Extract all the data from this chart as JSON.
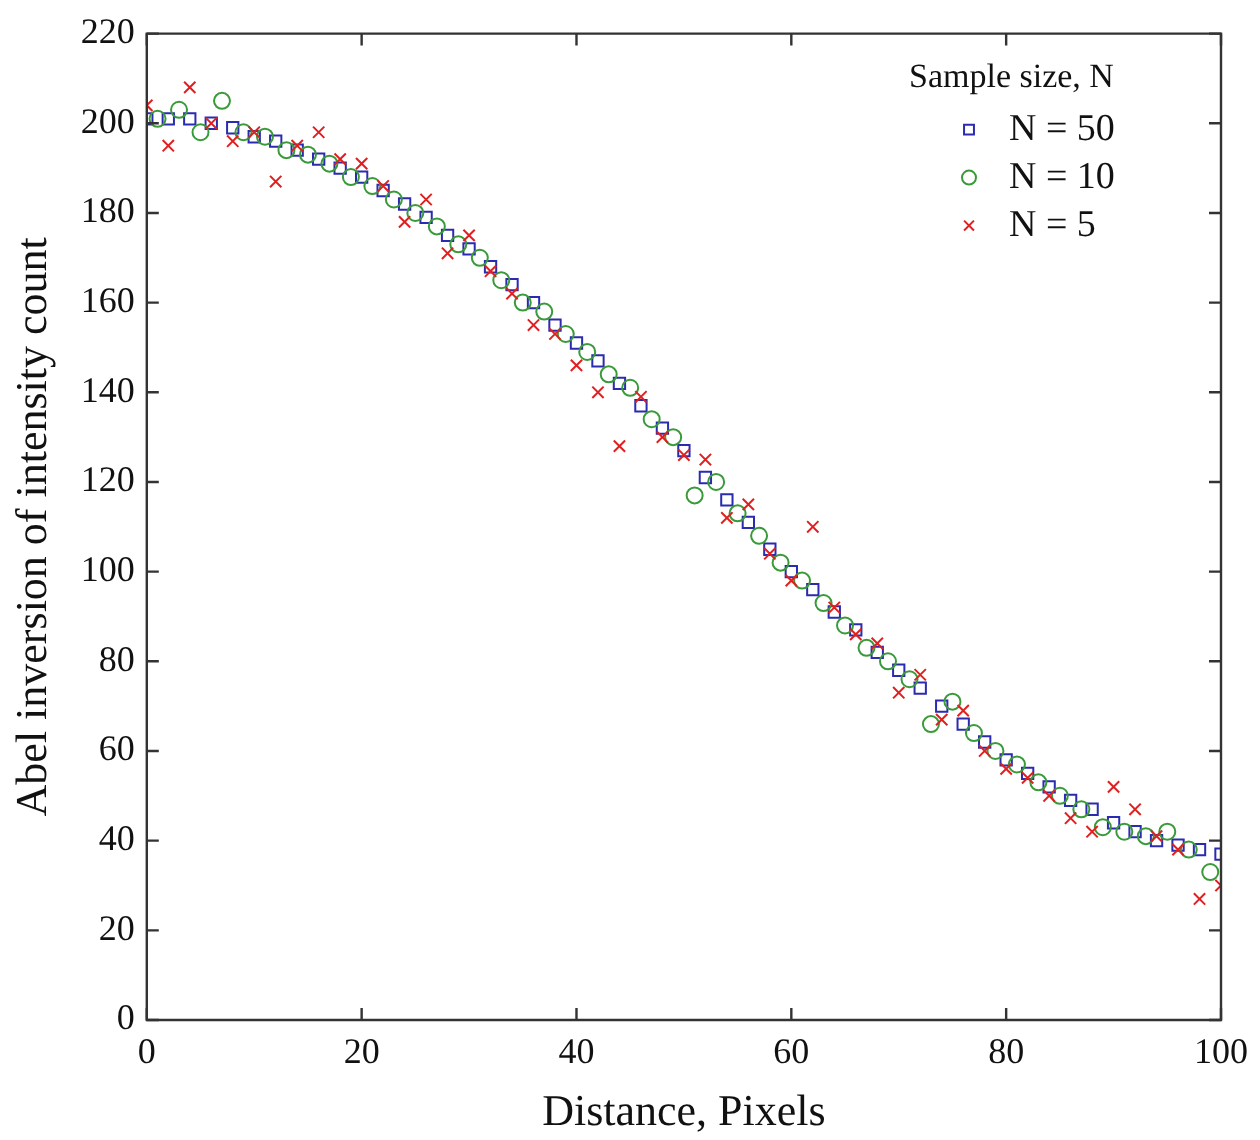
{
  "chart_data": {
    "type": "scatter",
    "xlabel": "Distance, Pixels",
    "ylabel": "Abel inversion of intensity count",
    "legend_title": "Sample size, N",
    "legend": "top right",
    "grid": false,
    "xlim": [
      0,
      100
    ],
    "xticks": [
      0,
      20,
      40,
      60,
      80,
      100
    ],
    "ylim": [
      0,
      220
    ],
    "yticks": [
      0,
      20,
      40,
      60,
      80,
      100,
      120,
      140,
      160,
      180,
      200,
      220
    ],
    "series": [
      {
        "name": "N = 50",
        "color": "#2b2bb0",
        "marker": "square",
        "x": [
          0,
          2,
          4,
          6,
          8,
          10,
          12,
          14,
          16,
          18,
          20,
          22,
          24,
          26,
          28,
          30,
          32,
          34,
          36,
          38,
          40,
          42,
          44,
          46,
          48,
          50,
          52,
          54,
          56,
          58,
          60,
          62,
          64,
          66,
          68,
          70,
          72,
          74,
          76,
          78,
          80,
          82,
          84,
          86,
          88,
          90,
          92,
          94,
          96,
          98,
          100
        ],
        "values": [
          201,
          201,
          201,
          200,
          199,
          197,
          196,
          194,
          192,
          190,
          188,
          185,
          182,
          179,
          175,
          172,
          168,
          164,
          160,
          155,
          151,
          147,
          142,
          137,
          132,
          127,
          121,
          116,
          111,
          105,
          100,
          96,
          91,
          87,
          82,
          78,
          74,
          70,
          66,
          62,
          58,
          55,
          52,
          49,
          47,
          44,
          42,
          40,
          39,
          38,
          37
        ]
      },
      {
        "name": "N = 10",
        "color": "#3a9a3a",
        "marker": "circle",
        "x": [
          1,
          3,
          5,
          7,
          9,
          11,
          13,
          15,
          17,
          19,
          21,
          23,
          25,
          27,
          29,
          31,
          33,
          35,
          37,
          39,
          41,
          43,
          45,
          47,
          49,
          51,
          53,
          55,
          57,
          59,
          61,
          63,
          65,
          67,
          69,
          71,
          73,
          75,
          77,
          79,
          81,
          83,
          85,
          87,
          89,
          91,
          93,
          95,
          97,
          99
        ],
        "values": [
          201,
          203,
          198,
          205,
          198,
          197,
          194,
          193,
          191,
          188,
          186,
          183,
          180,
          177,
          173,
          170,
          165,
          160,
          158,
          153,
          149,
          144,
          141,
          134,
          130,
          117,
          120,
          113,
          108,
          102,
          98,
          93,
          88,
          83,
          80,
          76,
          66,
          71,
          64,
          60,
          57,
          53,
          50,
          47,
          43,
          42,
          41,
          42,
          38,
          33
        ]
      },
      {
        "name": "N = 5",
        "color": "#e02020",
        "marker": "cross",
        "x": [
          0,
          2,
          4,
          6,
          8,
          10,
          12,
          14,
          16,
          18,
          20,
          22,
          24,
          26,
          28,
          30,
          32,
          34,
          36,
          38,
          40,
          42,
          44,
          46,
          48,
          50,
          52,
          54,
          56,
          58,
          60,
          62,
          64,
          66,
          68,
          70,
          72,
          74,
          76,
          78,
          80,
          82,
          84,
          86,
          88,
          90,
          92,
          94,
          96,
          98,
          100
        ],
        "values": [
          204,
          195,
          208,
          200,
          196,
          198,
          187,
          195,
          198,
          192,
          191,
          186,
          178,
          183,
          171,
          175,
          167,
          162,
          155,
          153,
          146,
          140,
          128,
          139,
          130,
          126,
          125,
          112,
          115,
          104,
          98,
          110,
          92,
          86,
          84,
          73,
          77,
          67,
          69,
          60,
          56,
          54,
          50,
          45,
          42,
          52,
          47,
          41,
          38,
          27,
          30
        ]
      }
    ]
  }
}
